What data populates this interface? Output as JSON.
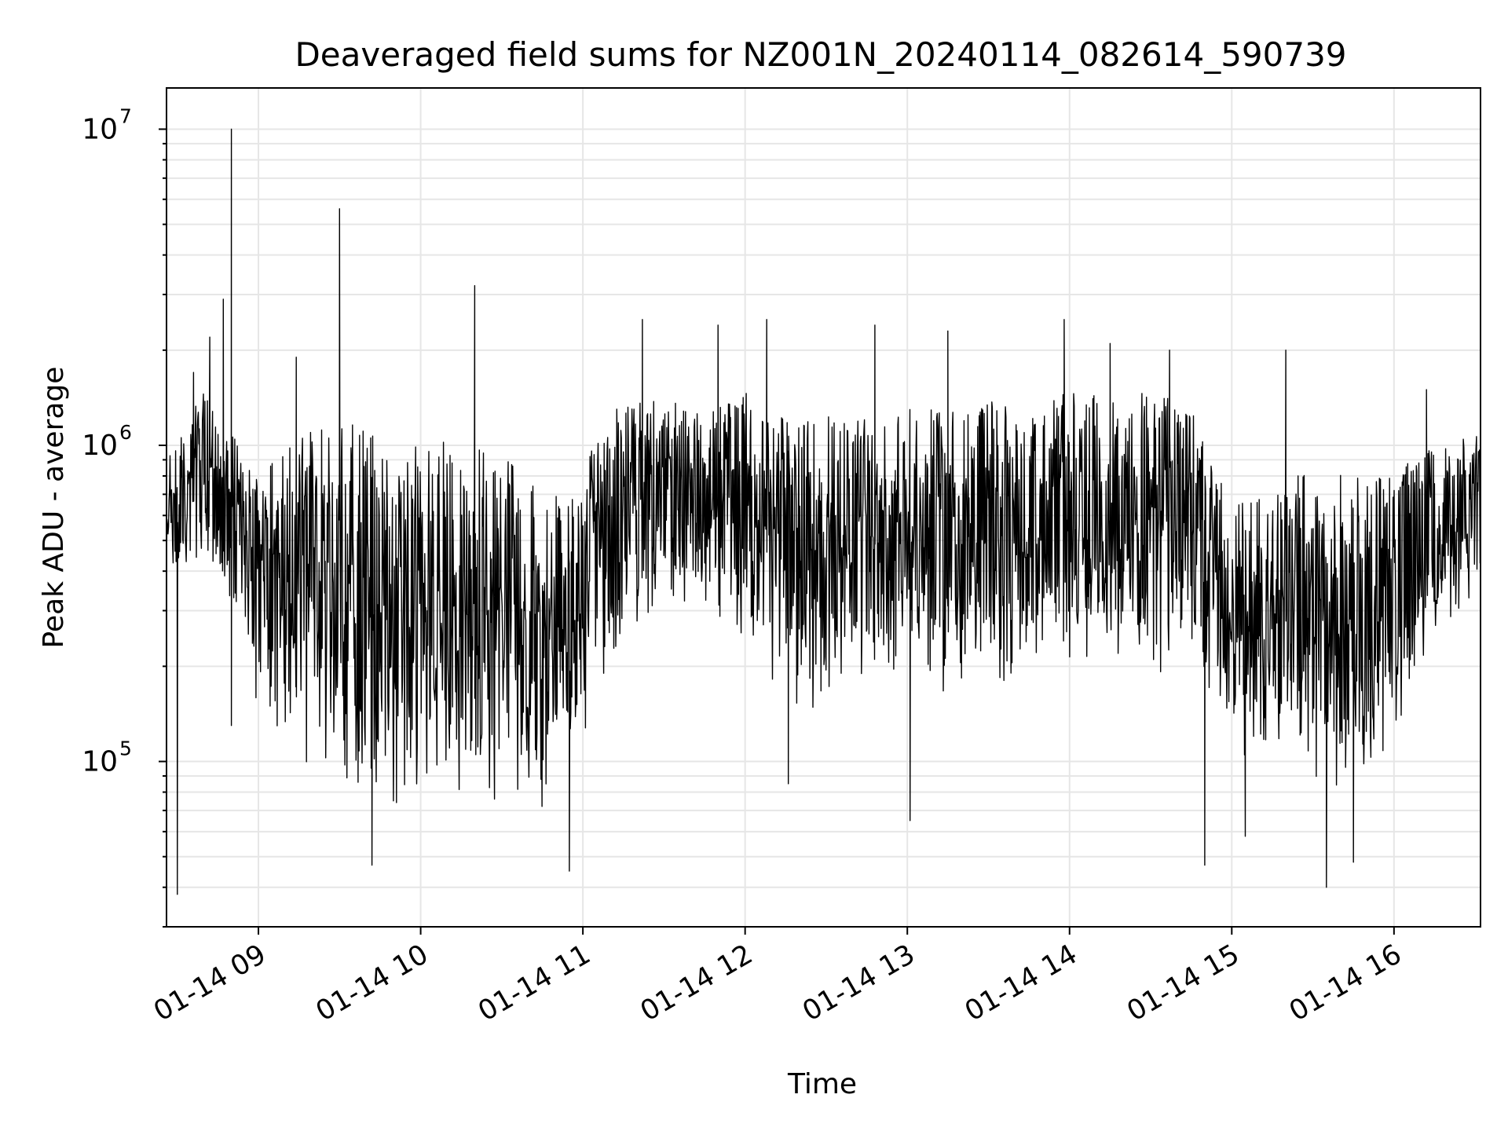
{
  "chart_data": {
    "type": "line",
    "title": "Deaveraged field sums for NZ001N_20240114_082614_590739",
    "xlabel": "Time",
    "ylabel": "Peak ADU - average",
    "yscale": "log",
    "ylim": [
      30000,
      13500000
    ],
    "xlim": [
      "2024-01-14 08:26",
      "2024-01-14 16:32"
    ],
    "grid": true,
    "line_color": "#000000",
    "x_ticks": [
      {
        "time": "2024-01-14 09:00",
        "label": "01-14 09"
      },
      {
        "time": "2024-01-14 10:00",
        "label": "01-14 10"
      },
      {
        "time": "2024-01-14 11:00",
        "label": "01-14 11"
      },
      {
        "time": "2024-01-14 12:00",
        "label": "01-14 12"
      },
      {
        "time": "2024-01-14 13:00",
        "label": "01-14 13"
      },
      {
        "time": "2024-01-14 14:00",
        "label": "01-14 14"
      },
      {
        "time": "2024-01-14 15:00",
        "label": "01-14 15"
      },
      {
        "time": "2024-01-14 16:00",
        "label": "01-14 16"
      }
    ],
    "y_ticks": [
      {
        "value": 100000,
        "base": "10",
        "exp": "5"
      },
      {
        "value": 1000000,
        "base": "10",
        "exp": "6"
      },
      {
        "value": 10000000,
        "base": "10",
        "exp": "7"
      }
    ],
    "envelope": {
      "x": [
        "2024-01-14 08:26",
        "2024-01-14 08:40",
        "2024-01-14 08:50",
        "2024-01-14 09:00",
        "2024-01-14 09:15",
        "2024-01-14 09:30",
        "2024-01-14 09:45",
        "2024-01-14 10:00",
        "2024-01-14 10:15",
        "2024-01-14 10:30",
        "2024-01-14 10:45",
        "2024-01-14 11:00",
        "2024-01-14 11:15",
        "2024-01-14 11:30",
        "2024-01-14 11:45",
        "2024-01-14 12:00",
        "2024-01-14 12:15",
        "2024-01-14 12:30",
        "2024-01-14 12:45",
        "2024-01-14 13:00",
        "2024-01-14 13:15",
        "2024-01-14 13:30",
        "2024-01-14 13:45",
        "2024-01-14 14:00",
        "2024-01-14 14:15",
        "2024-01-14 14:30",
        "2024-01-14 14:45",
        "2024-01-14 15:00",
        "2024-01-14 15:15",
        "2024-01-14 15:30",
        "2024-01-14 15:45",
        "2024-01-14 16:00",
        "2024-01-14 16:15",
        "2024-01-14 16:32"
      ],
      "high": [
        900000,
        1500000,
        1100000,
        850000,
        1100000,
        1200000,
        1100000,
        1100000,
        1000000,
        950000,
        750000,
        900000,
        1400000,
        1400000,
        1300000,
        1500000,
        1200000,
        1300000,
        1200000,
        1300000,
        1300000,
        1400000,
        1300000,
        1500000,
        1400000,
        1500000,
        1300000,
        650000,
        700000,
        900000,
        800000,
        850000,
        1000000,
        1100000
      ],
      "low": [
        350000,
        400000,
        250000,
        150000,
        100000,
        90000,
        75000,
        70000,
        70000,
        70000,
        70000,
        120000,
        250000,
        300000,
        300000,
        250000,
        140000,
        150000,
        180000,
        200000,
        160000,
        150000,
        200000,
        200000,
        230000,
        180000,
        220000,
        100000,
        100000,
        90000,
        70000,
        120000,
        250000,
        350000
      ]
    },
    "spikes": [
      {
        "time": "2024-01-14 08:30",
        "value": 38000
      },
      {
        "time": "2024-01-14 08:36",
        "value": 1700000
      },
      {
        "time": "2024-01-14 08:42",
        "value": 2200000
      },
      {
        "time": "2024-01-14 08:47",
        "value": 2900000
      },
      {
        "time": "2024-01-14 08:50",
        "value": 10000000
      },
      {
        "time": "2024-01-14 08:50",
        "value": 130000
      },
      {
        "time": "2024-01-14 09:14",
        "value": 1900000
      },
      {
        "time": "2024-01-14 09:30",
        "value": 5600000
      },
      {
        "time": "2024-01-14 09:42",
        "value": 47000
      },
      {
        "time": "2024-01-14 10:20",
        "value": 3200000
      },
      {
        "time": "2024-01-14 10:55",
        "value": 45000
      },
      {
        "time": "2024-01-14 11:22",
        "value": 2500000
      },
      {
        "time": "2024-01-14 11:50",
        "value": 2400000
      },
      {
        "time": "2024-01-14 12:08",
        "value": 2500000
      },
      {
        "time": "2024-01-14 12:16",
        "value": 85000
      },
      {
        "time": "2024-01-14 12:48",
        "value": 2400000
      },
      {
        "time": "2024-01-14 13:01",
        "value": 65000
      },
      {
        "time": "2024-01-14 13:15",
        "value": 2300000
      },
      {
        "time": "2024-01-14 13:58",
        "value": 2500000
      },
      {
        "time": "2024-01-14 14:15",
        "value": 2100000
      },
      {
        "time": "2024-01-14 14:37",
        "value": 2000000
      },
      {
        "time": "2024-01-14 14:50",
        "value": 47000
      },
      {
        "time": "2024-01-14 15:05",
        "value": 58000
      },
      {
        "time": "2024-01-14 15:20",
        "value": 2000000
      },
      {
        "time": "2024-01-14 15:35",
        "value": 40000
      },
      {
        "time": "2024-01-14 15:45",
        "value": 48000
      },
      {
        "time": "2024-01-14 16:12",
        "value": 1500000
      }
    ]
  }
}
